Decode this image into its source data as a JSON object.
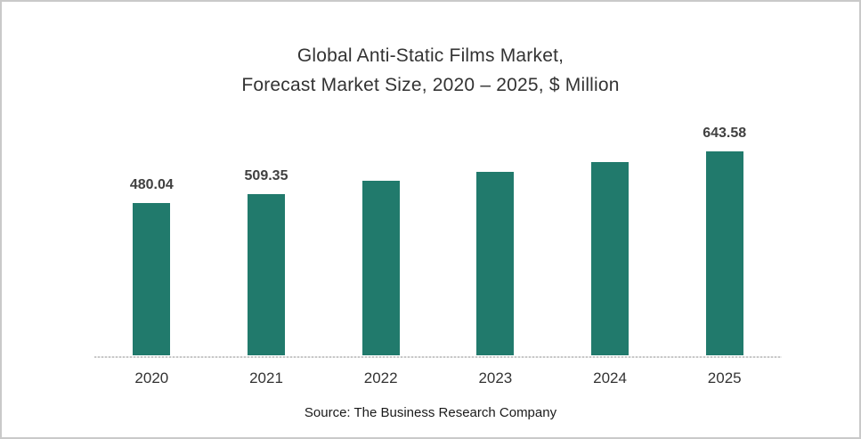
{
  "window": {
    "background": "#ffffff",
    "border_color": "#c9c9c9"
  },
  "chart_data": {
    "type": "bar",
    "title_lines": [
      "Global Anti-Static Films Market,",
      "Forecast Market Size, 2020 – 2025, $ Million"
    ],
    "categories": [
      "2020",
      "2021",
      "2022",
      "2023",
      "2024",
      "2025"
    ],
    "values": [
      480.04,
      509.35,
      550,
      580,
      610,
      643.58
    ],
    "data_labels": [
      "480.04",
      "509.35",
      "",
      "",
      "",
      "643.58"
    ],
    "ylim": [
      0,
      700
    ],
    "grid": false,
    "legend": "none",
    "bar_color": "#217a6c",
    "axis_line_color": "#c8c8c8",
    "title_color": "#333333",
    "label_color": "#404040",
    "source": "Source: The Business Research Company"
  }
}
